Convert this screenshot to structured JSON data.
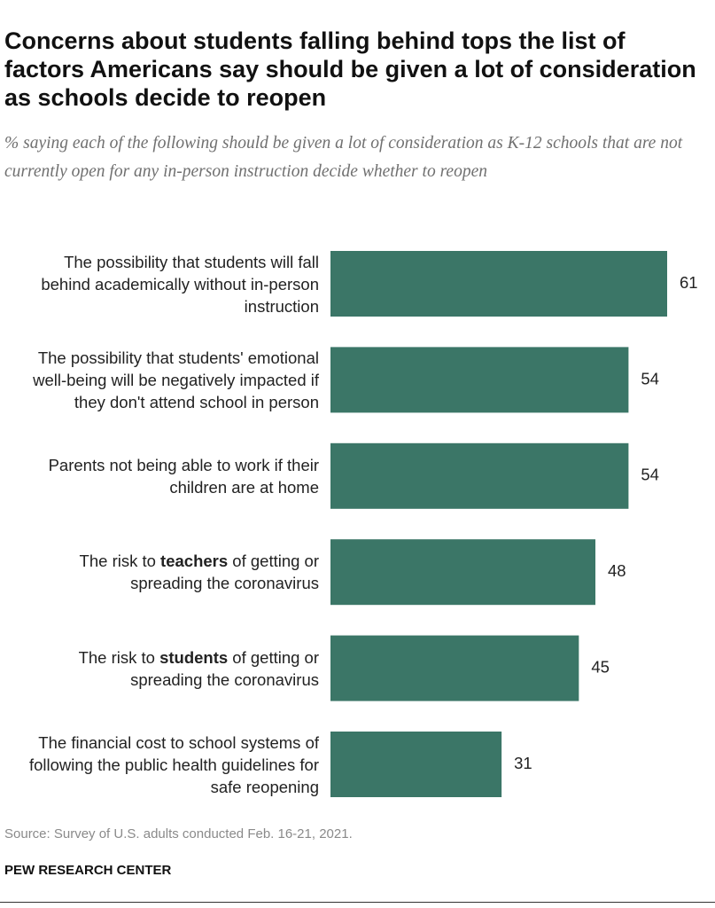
{
  "chart_data": {
    "type": "bar",
    "orientation": "horizontal",
    "title": "Concerns about students falling behind tops the list of factors Americans say should be given a lot of consideration as schools decide to reopen",
    "subtitle": "% saying each of the following should be given a lot of consideration as K-12 schools that are not currently open for any in-person instruction decide whether to reopen",
    "categories": [
      "The possibility that students will fall behind academically without in-person instruction",
      "The possibility that students' emotional well-being will be negatively impacted if they don't attend school in person",
      "Parents not being able to work if their children are at home",
      "The risk to teachers of getting or spreading the coronavirus",
      "The risk to students of getting or spreading the coronavirus",
      "The financial cost to school systems of following the public health guidelines for safe reopening"
    ],
    "emphasis": [
      null,
      null,
      null,
      "teachers",
      "students",
      null
    ],
    "values": [
      61,
      54,
      54,
      48,
      45,
      31
    ],
    "color": "#3b7667",
    "source": "Source: Survey of U.S. adults conducted Feb. 16-21, 2021.",
    "credit": "PEW RESEARCH CENTER"
  }
}
